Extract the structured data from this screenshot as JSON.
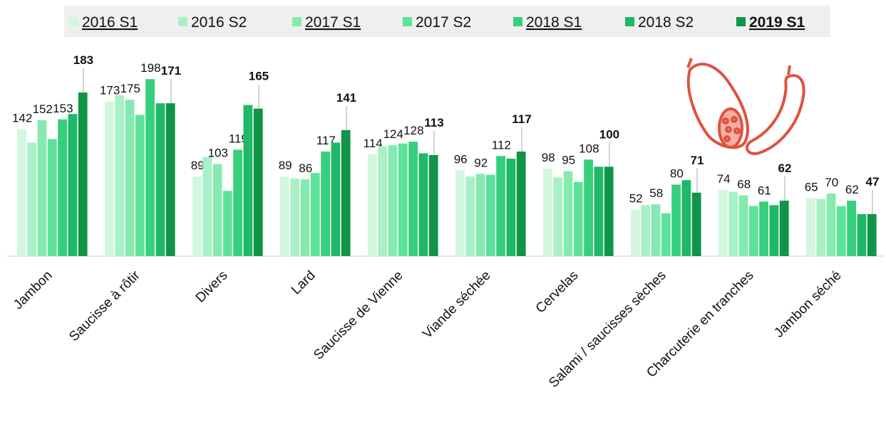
{
  "chart_data": {
    "type": "bar",
    "categories": [
      "Jambon",
      "Saucisse à rôtir",
      "Divers",
      "Lard",
      "Saucisse de Vienne",
      "Viande séchée",
      "Cervelas",
      "Salami / saucisses sèches",
      "Charcuterie en tranches",
      "Jambon séché"
    ],
    "ylim": [
      0,
      230
    ],
    "series": [
      {
        "name": "2016 S1",
        "color": "#d2f7de",
        "show_labels": true,
        "bold_labels": false,
        "underline": true,
        "bold_legend": false,
        "values": [
          142,
          173,
          89,
          89,
          114,
          96,
          98,
          52,
          74,
          65
        ]
      },
      {
        "name": "2016 S2",
        "color": "#a9f0c6",
        "show_labels": false,
        "bold_labels": false,
        "underline": false,
        "bold_legend": false,
        "values": [
          127,
          180,
          111,
          87,
          123,
          89,
          88,
          57,
          72,
          64
        ]
      },
      {
        "name": "2017 S1",
        "color": "#86eab0",
        "show_labels": true,
        "bold_labels": false,
        "underline": true,
        "bold_legend": false,
        "values": [
          152,
          175,
          103,
          86,
          124,
          92,
          95,
          58,
          68,
          70
        ]
      },
      {
        "name": "2017 S2",
        "color": "#5de399",
        "show_labels": false,
        "bold_labels": false,
        "underline": false,
        "bold_legend": false,
        "values": [
          131,
          158,
          73,
          93,
          126,
          91,
          83,
          48,
          56,
          56
        ]
      },
      {
        "name": "2018 S1",
        "color": "#36d07c",
        "show_labels": true,
        "bold_labels": false,
        "underline": true,
        "bold_legend": false,
        "values": [
          153,
          198,
          119,
          117,
          128,
          112,
          108,
          80,
          61,
          62
        ]
      },
      {
        "name": "2018 S2",
        "color": "#1fb868",
        "show_labels": false,
        "bold_labels": false,
        "underline": false,
        "bold_legend": false,
        "values": [
          159,
          171,
          169,
          127,
          115,
          109,
          100,
          85,
          57,
          47
        ]
      },
      {
        "name": "2019 S1",
        "color": "#0f9448",
        "show_labels": true,
        "bold_labels": true,
        "underline": true,
        "bold_legend": true,
        "values": [
          183,
          171,
          165,
          141,
          113,
          117,
          100,
          71,
          62,
          47
        ]
      }
    ]
  }
}
